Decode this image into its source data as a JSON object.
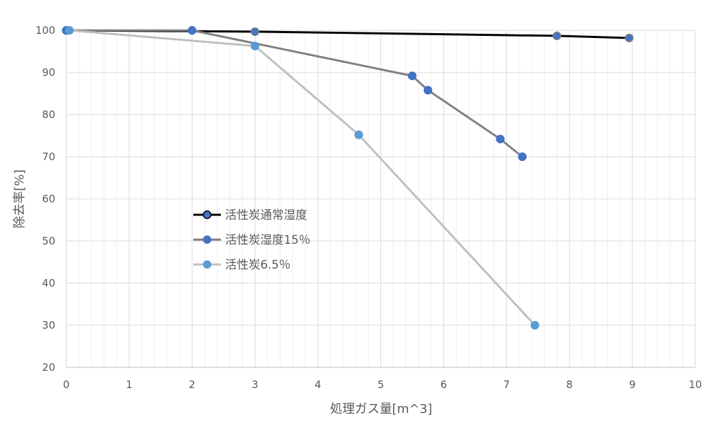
{
  "chart_data": {
    "type": "line",
    "xlabel": "処理ガス量[m^3]",
    "ylabel": "除去率[%]",
    "xlim": [
      0,
      10
    ],
    "ylim": [
      20,
      100
    ],
    "x_ticks": [
      0,
      1,
      2,
      3,
      4,
      5,
      6,
      7,
      8,
      9,
      10
    ],
    "y_ticks": [
      20,
      30,
      40,
      50,
      60,
      70,
      80,
      90,
      100
    ],
    "x_minor_step": 0.2,
    "grid": true,
    "legend_position": "center-left",
    "series": [
      {
        "name": "活性炭通常湿度",
        "line_color": "#000000",
        "marker_color": "#4472C4",
        "points": [
          [
            0,
            100
          ],
          [
            3,
            99.7
          ],
          [
            7.8,
            98.7
          ],
          [
            8.95,
            98.2
          ]
        ]
      },
      {
        "name": "活性炭湿度15％",
        "line_color": "#808080",
        "marker_color": "#4472C4",
        "points": [
          [
            0,
            100
          ],
          [
            2,
            100
          ],
          [
            5.5,
            89.2
          ],
          [
            5.75,
            85.8
          ],
          [
            6.9,
            74.2
          ],
          [
            7.25,
            70
          ]
        ]
      },
      {
        "name": "活性炭6.5％",
        "line_color": "#BFBFBF",
        "marker_color": "#5B9BD5",
        "points": [
          [
            0.05,
            100
          ],
          [
            3,
            96.3
          ],
          [
            4.65,
            75.2
          ],
          [
            7.45,
            30
          ]
        ]
      }
    ]
  }
}
